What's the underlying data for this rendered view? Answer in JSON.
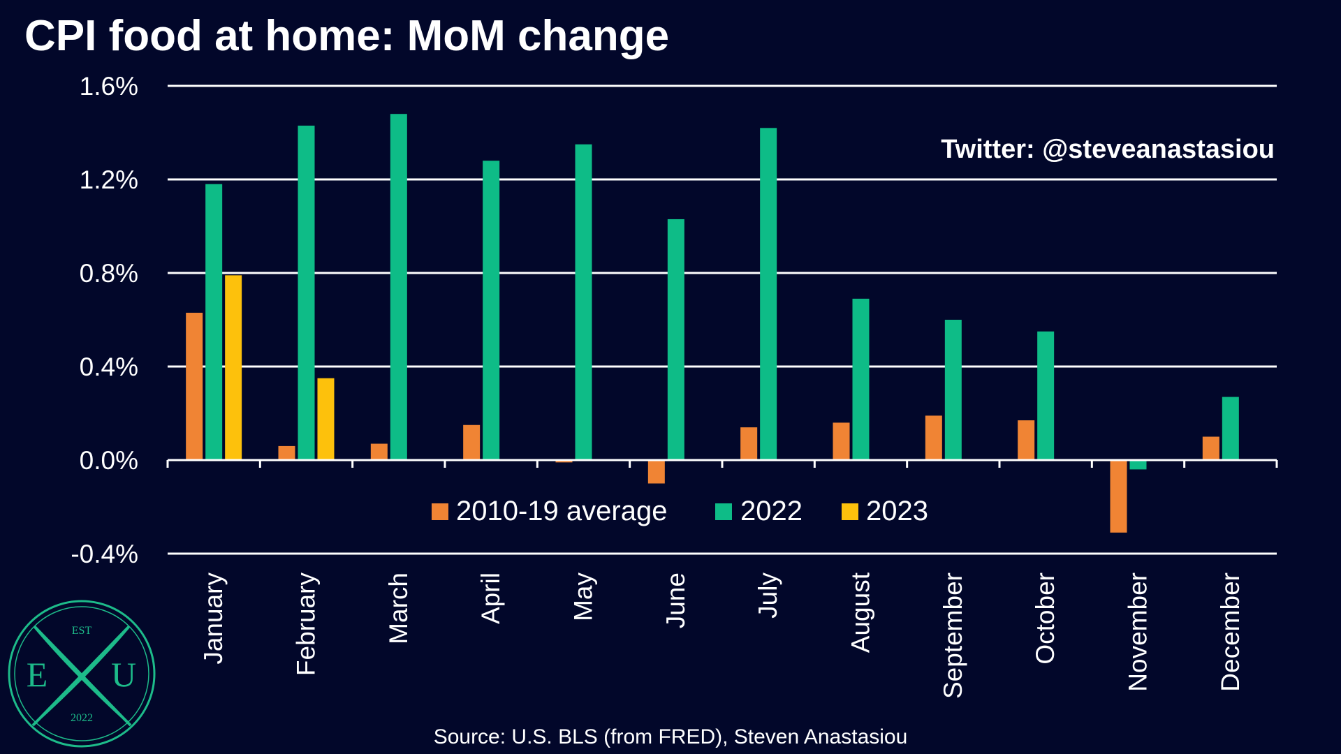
{
  "colors": {
    "background": "#02072a",
    "avg": "#f08434",
    "y2022": "#0ebc87",
    "y2023": "#fdc10c",
    "grid": "#ffffff",
    "logo": "#1dbb8a"
  },
  "watermark": "Twitter: @steveanastasiou",
  "source": "Source: U.S. BLS (from FRED), Steven Anastasiou",
  "logo": {
    "top": "EST",
    "left": "E",
    "right": "U",
    "bottom": "2022",
    "icon": "exu-crossed-quills-logo"
  },
  "chart_data": {
    "type": "bar",
    "title": "CPI food at home: MoM change",
    "xlabel": "",
    "ylabel": "",
    "ylim": [
      -0.4,
      1.6
    ],
    "yticks": [
      -0.4,
      0.0,
      0.4,
      0.8,
      1.2,
      1.6
    ],
    "ytick_labels": [
      "-0.4%",
      "0.0%",
      "0.4%",
      "0.8%",
      "1.2%",
      "1.6%"
    ],
    "grid": true,
    "legend_position": "bottom-center",
    "categories": [
      "January",
      "February",
      "March",
      "April",
      "May",
      "June",
      "July",
      "August",
      "September",
      "October",
      "November",
      "December"
    ],
    "series": [
      {
        "name": "2010-19 average",
        "color": "#f08434",
        "values": [
          0.63,
          0.06,
          0.07,
          0.15,
          -0.01,
          -0.1,
          0.14,
          0.16,
          0.19,
          0.17,
          -0.31,
          0.1
        ]
      },
      {
        "name": "2022",
        "color": "#0ebc87",
        "values": [
          1.18,
          1.43,
          1.48,
          1.28,
          1.35,
          1.03,
          1.42,
          0.69,
          0.6,
          0.55,
          -0.04,
          0.27
        ]
      },
      {
        "name": "2023",
        "color": "#fdc10c",
        "values": [
          0.79,
          0.35,
          null,
          null,
          null,
          null,
          null,
          null,
          null,
          null,
          null,
          null
        ]
      }
    ]
  }
}
